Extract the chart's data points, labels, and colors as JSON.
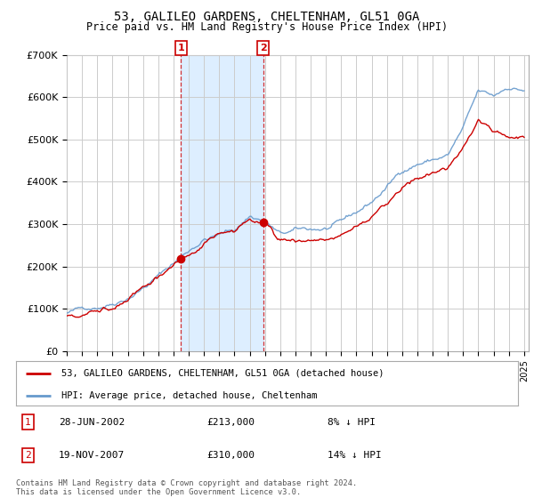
{
  "title": "53, GALILEO GARDENS, CHELTENHAM, GL51 0GA",
  "subtitle": "Price paid vs. HM Land Registry's House Price Index (HPI)",
  "ylim": [
    0,
    700000
  ],
  "yticks": [
    0,
    100000,
    200000,
    300000,
    400000,
    500000,
    600000,
    700000
  ],
  "ytick_labels": [
    "£0",
    "£100K",
    "£200K",
    "£300K",
    "£400K",
    "£500K",
    "£600K",
    "£700K"
  ],
  "background_color": "#ffffff",
  "plot_bg_color": "#ffffff",
  "grid_color": "#cccccc",
  "hpi_color": "#6699cc",
  "price_color": "#cc0000",
  "shade_color": "#ddeeff",
  "transaction1": {
    "label": "1",
    "date": "28-JUN-2002",
    "price": 213000,
    "pct": "8%",
    "x": 2002.49
  },
  "transaction2": {
    "label": "2",
    "date": "19-NOV-2007",
    "price": 310000,
    "pct": "14%",
    "x": 2007.88
  },
  "legend_line1": "53, GALILEO GARDENS, CHELTENHAM, GL51 0GA (detached house)",
  "legend_line2": "HPI: Average price, detached house, Cheltenham",
  "footer1": "Contains HM Land Registry data © Crown copyright and database right 2024.",
  "footer2": "This data is licensed under the Open Government Licence v3.0.",
  "table_row1": [
    "1",
    "28-JUN-2002",
    "£213,000",
    "8% ↓ HPI"
  ],
  "table_row2": [
    "2",
    "19-NOV-2007",
    "£310,000",
    "14% ↓ HPI"
  ]
}
